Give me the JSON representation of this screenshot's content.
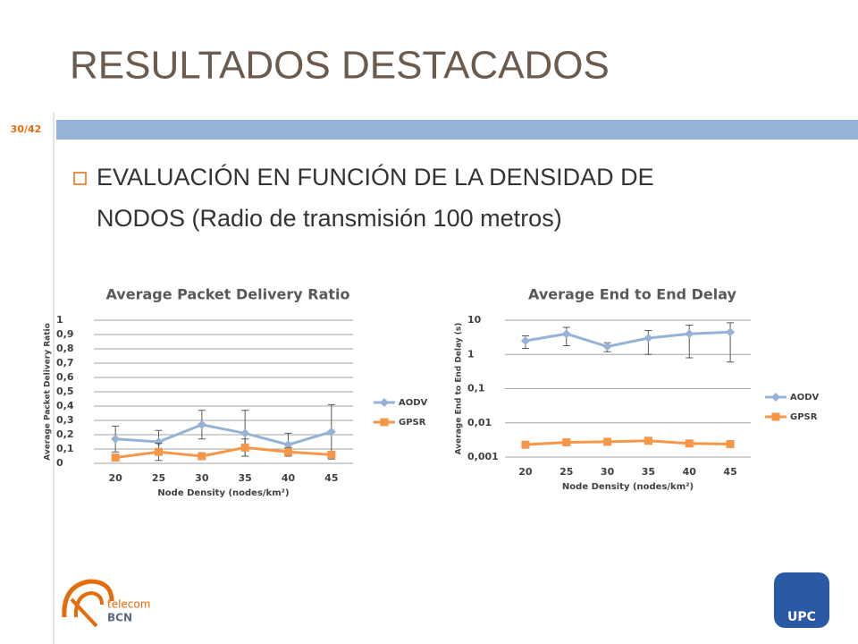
{
  "slide": {
    "title": "RESULTADOS DESTACADOS",
    "page": "30/42",
    "bullet": [
      "EVALUACIÓN EN FUNCIÓN DE LA DENSIDAD DE",
      "NODOS (Radio de transmisión 100 metros)"
    ]
  },
  "logos": {
    "telecom": "telecom",
    "bcn": "BCN",
    "upc": "UPC"
  },
  "chart_data": [
    {
      "type": "line",
      "title": "Average Packet Delivery Ratio",
      "x_label": "Node Density (nodes/km²)",
      "y_label": "Average Packet Delivery Ratio",
      "categories": [
        "20",
        "25",
        "30",
        "35",
        "40",
        "45"
      ],
      "series": [
        {
          "name": "AODV",
          "color": "#95b3d7",
          "marker": "diamond",
          "values": [
            0.17,
            0.15,
            0.27,
            0.21,
            0.13,
            0.22
          ],
          "errors": [
            0.09,
            0.08,
            0.1,
            0.16,
            0.08,
            0.19
          ]
        },
        {
          "name": "GPSR",
          "color": "#f79646",
          "marker": "square",
          "values": [
            0.04,
            0.08,
            0.05,
            0.11,
            0.08,
            0.06
          ],
          "errors": [
            0.02,
            0.06,
            0.02,
            0.06,
            0.03,
            0.02
          ]
        }
      ],
      "ylim": [
        0,
        1
      ],
      "yticks": [
        0,
        {
          "value": 0.1,
          "label": "0,1"
        },
        {
          "value": 0.2,
          "label": "0,2"
        },
        {
          "value": 0.3,
          "label": "0,3"
        },
        {
          "value": 0.4,
          "label": "0,4"
        },
        {
          "value": 0.5,
          "label": "0,5"
        },
        {
          "value": 0.6,
          "label": "0,6"
        },
        {
          "value": 0.7,
          "label": "0,7"
        },
        {
          "value": 0.8,
          "label": "0,8"
        },
        {
          "value": 0.9,
          "label": "0,9"
        },
        1
      ],
      "grid": true,
      "legend": "right",
      "log_y": false
    },
    {
      "type": "line",
      "title": "Average End to End Delay",
      "x_label": "Node Density (nodes/km²)",
      "y_label": "Average End to End Delay (s)",
      "categories": [
        "20",
        "25",
        "30",
        "35",
        "40",
        "45"
      ],
      "series": [
        {
          "name": "AODV",
          "color": "#95b3d7",
          "marker": "diamond",
          "values": [
            2.5,
            4,
            1.7,
            3,
            4,
            4.5
          ],
          "errors": [
            1,
            2.2,
            0.5,
            2,
            3.2,
            3.9
          ]
        },
        {
          "name": "GPSR",
          "color": "#f79646",
          "marker": "square",
          "values": [
            0.0023,
            0.0027,
            0.0028,
            0.003,
            0.0025,
            0.0024
          ],
          "errors": [
            0.0003,
            0.0004,
            0.0004,
            0.0005,
            0.0003,
            0.0003
          ]
        }
      ],
      "ylim": [
        0.001,
        10
      ],
      "yticks": [
        {
          "value": 0.001,
          "label": "0,001"
        },
        {
          "value": 0.01,
          "label": "0,01"
        },
        {
          "value": 0.1,
          "label": "0,1"
        },
        1,
        10
      ],
      "grid": true,
      "legend": "right",
      "log_y": true
    }
  ]
}
